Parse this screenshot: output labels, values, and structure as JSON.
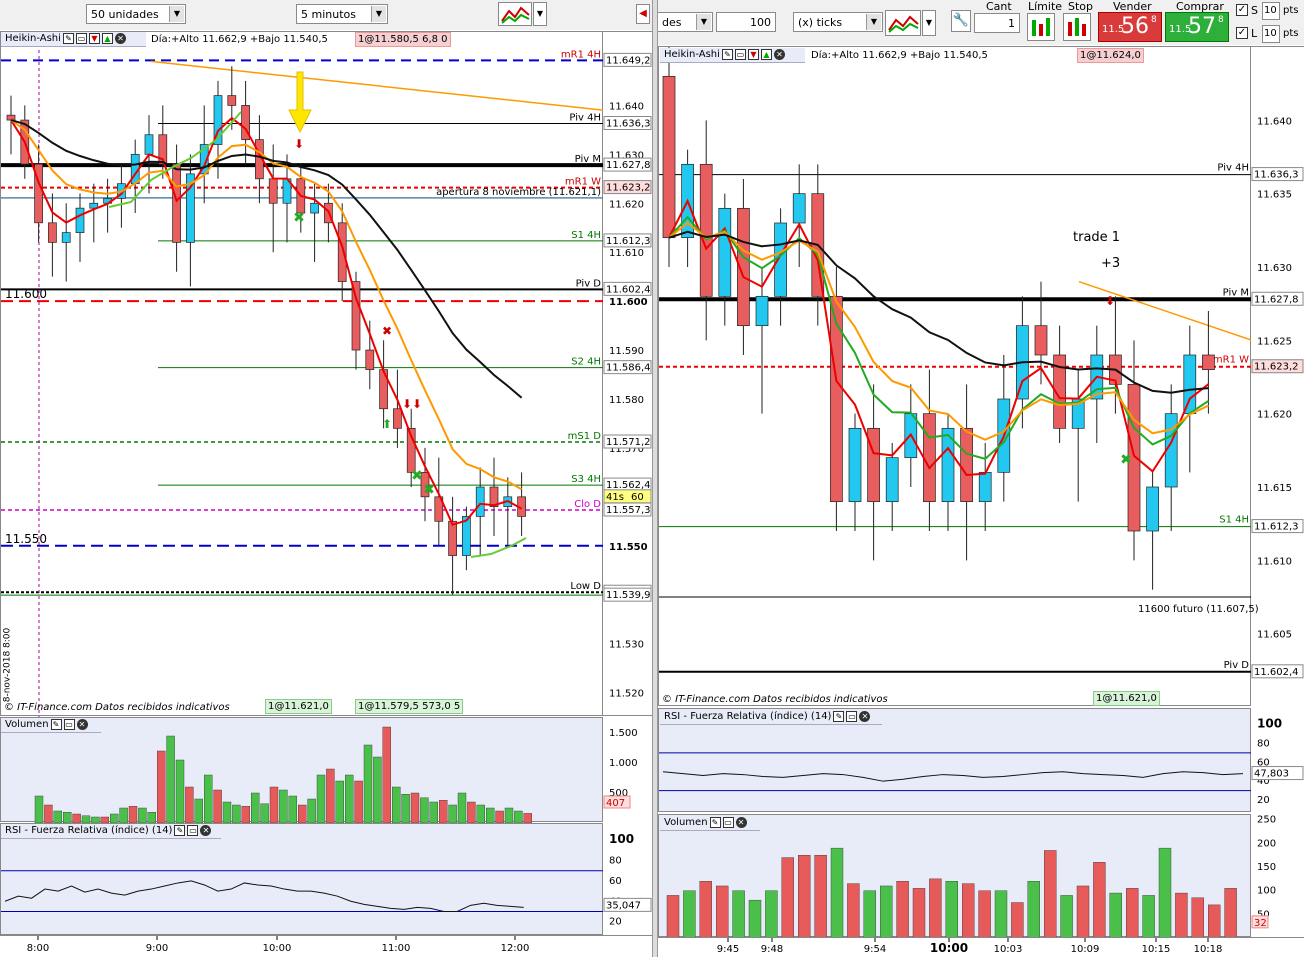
{
  "toolbar": {
    "left_qty": "50 unidades",
    "left_interval": "5 minutos",
    "right_unit": "des",
    "right_qty": "100",
    "right_ticks": "(x) ticks",
    "cant_label": "Cant",
    "cant_value": "1",
    "limite_label": "Límite",
    "stop_label": "Stop",
    "stop_value": "1@11.624,0",
    "vender_label": "Vender",
    "vender_small": "11.5",
    "vender_big": "56",
    "vender_sup": "8",
    "comprar_label": "Comprar",
    "comprar_small": "11.5",
    "comprar_big": "57",
    "comprar_sup": "8",
    "s_label": "S",
    "s_value": "10",
    "s_unit": "pts",
    "l_label": "L",
    "l_value": "10",
    "l_unit": "pts"
  },
  "left": {
    "panel_title": "Heikin-Ashi",
    "day_info": "Día:+Alto 11.662,9 +Bajo 11.540,5",
    "order_tag_top": "1@11.580,5",
    "order_tag_top_b": "6,8 0",
    "copyright": "© IT-Finance.com Datos recibidos indicativos",
    "order_tag_bottom1": "1@11.621,0",
    "order_tag_bottom2": "1@11.579,5",
    "order_tag_bottom2b": "573,0 5",
    "ticks": [
      "11.640",
      "11.630",
      "11.620",
      "11.610",
      "11.600",
      "11.590",
      "11.580",
      "11.570",
      "11.560",
      "11.550",
      "11.540",
      "11.530",
      "11.520"
    ],
    "left_labels": [
      "11.600",
      "11.550"
    ],
    "level_labels": [
      {
        "name": "mR1 4H",
        "value": "11.649,2"
      },
      {
        "name": "Piv 4H",
        "value": "11.636,3"
      },
      {
        "name": "Piv M",
        "value": "11.627,8"
      },
      {
        "name": "mR1 W",
        "value": "11.623,2"
      },
      {
        "name": "apertura 8 noviembre (11.621,1)",
        "value": ""
      },
      {
        "name": "S1 4H",
        "value": "11.612,3"
      },
      {
        "name": "Piv D",
        "value": "11.602,4"
      },
      {
        "name": "S2 4H",
        "value": "11.586,4"
      },
      {
        "name": "mS1 D",
        "value": "11.571,2"
      },
      {
        "name": "S3 4H",
        "value": "11.562,4"
      },
      {
        "name": "Clo D",
        "value": "11.557,3"
      },
      {
        "name": "Low D",
        "value": "11.540,5"
      },
      {
        "name": "",
        "value": "11.539,9"
      }
    ],
    "timer": "41s",
    "timer_price": "60",
    "date_vertical": "8-nov-2018 8:00",
    "vol_title": "Volumen",
    "vol_ticks": [
      "1.500",
      "1.000",
      "500"
    ],
    "vol_last": "407",
    "rsi_title": "RSI - Fuerza Relativa (índice) (14)",
    "rsi_ticks": [
      "100",
      "80",
      "60",
      "40",
      "20"
    ],
    "rsi_last": "35,047",
    "time_labels": [
      "8:00",
      "9:00",
      "10:00",
      "11:00",
      "12:00"
    ]
  },
  "right": {
    "panel_title": "Heikin-Ashi",
    "day_info": "Día:+Alto 11.662,9 +Bajo 11.540,5",
    "order_tag": "1@11.624,0",
    "annotation": "trade 1",
    "annotation2": "+3",
    "future_label": "11600 futuro (11.607,5)",
    "copyright": "© IT-Finance.com Datos recibidos indicativos",
    "order_tag_bottom": "1@11.621,0",
    "ticks": [
      "11.640",
      "11.635",
      "11.630",
      "11.625",
      "11.620",
      "11.615",
      "11.610",
      "11.605"
    ],
    "level_labels": [
      {
        "name": "Piv 4H",
        "value": "11.636,3"
      },
      {
        "name": "Piv M",
        "value": "11.627,8"
      },
      {
        "name": "mR1 W",
        "value": "11.623,2"
      },
      {
        "name": "S1 4H",
        "value": "11.612,3"
      },
      {
        "name": "Piv D",
        "value": "11.602,4"
      }
    ],
    "rsi_title": "RSI - Fuerza Relativa (índice) (14)",
    "rsi_ticks": [
      "100",
      "80",
      "60",
      "40",
      "20"
    ],
    "rsi_last": "47,803",
    "vol_title": "Volumen",
    "vol_ticks": [
      "250",
      "200",
      "150",
      "100",
      "50"
    ],
    "vol_last": "32",
    "time_labels": [
      "9:45",
      "9:48",
      "9:54",
      "10:00",
      "10:03",
      "10:09",
      "10:15",
      "10:18"
    ]
  },
  "chart_data": [
    {
      "type": "candlestick",
      "title": "Heikin-Ashi 5 minutos",
      "ylim": [
        11515,
        11655
      ],
      "candles": [
        [
          11638,
          11642,
          11630,
          11637
        ],
        [
          11637,
          11640,
          11625,
          11628
        ],
        [
          11628,
          11632,
          11612,
          11616
        ],
        [
          11616,
          11622,
          11605,
          11612
        ],
        [
          11612,
          11620,
          11604,
          11614
        ],
        [
          11614,
          11622,
          11608,
          11619
        ],
        [
          11619,
          11624,
          11612,
          11620
        ],
        [
          11620,
          11625,
          11614,
          11621
        ],
        [
          11621,
          11628,
          11615,
          11624
        ],
        [
          11624,
          11633,
          11618,
          11630
        ],
        [
          11630,
          11638,
          11622,
          11634
        ],
        [
          11634,
          11640,
          11625,
          11628
        ],
        [
          11628,
          11632,
          11606,
          11612
        ],
        [
          11612,
          11630,
          11603,
          11626
        ],
        [
          11626,
          11640,
          11620,
          11632
        ],
        [
          11632,
          11645,
          11625,
          11642
        ],
        [
          11642,
          11648,
          11635,
          11640
        ],
        [
          11640,
          11645,
          11628,
          11633
        ],
        [
          11633,
          11638,
          11620,
          11625
        ],
        [
          11625,
          11632,
          11610,
          11620
        ],
        [
          11620,
          11630,
          11612,
          11625
        ],
        [
          11625,
          11628,
          11614,
          11618
        ],
        [
          11618,
          11624,
          11608,
          11620
        ],
        [
          11620,
          11624,
          11612,
          11616
        ],
        [
          11616,
          11620,
          11600,
          11604
        ],
        [
          11604,
          11606,
          11586,
          11590
        ],
        [
          11590,
          11596,
          11582,
          11586
        ],
        [
          11586,
          11592,
          11574,
          11578
        ],
        [
          11578,
          11586,
          11570,
          11574
        ],
        [
          11574,
          11578,
          11562,
          11565
        ],
        [
          11565,
          11570,
          11555,
          11560
        ],
        [
          11560,
          11568,
          11550,
          11555
        ],
        [
          11555,
          11560,
          11540,
          11548
        ],
        [
          11548,
          11558,
          11545,
          11556
        ],
        [
          11556,
          11566,
          11548,
          11562
        ],
        [
          11562,
          11568,
          11552,
          11558
        ],
        [
          11558,
          11564,
          11550,
          11560
        ],
        [
          11560,
          11565,
          11552,
          11556
        ]
      ]
    },
    {
      "type": "candlestick",
      "title": "Heikin-Ashi 100 ticks",
      "ylim": [
        11600,
        11645
      ],
      "candles": [
        [
          11643,
          11646,
          11630,
          11632
        ],
        [
          11632,
          11638,
          11630,
          11637
        ],
        [
          11637,
          11640,
          11625,
          11628
        ],
        [
          11628,
          11635,
          11626,
          11634
        ],
        [
          11634,
          11636,
          11624,
          11626
        ],
        [
          11626,
          11630,
          11620,
          11628
        ],
        [
          11628,
          11634,
          11626,
          11633
        ],
        [
          11633,
          11637,
          11630,
          11635
        ],
        [
          11635,
          11637,
          11626,
          11628
        ],
        [
          11628,
          11630,
          11612,
          11614
        ],
        [
          11614,
          11620,
          11612,
          11619
        ],
        [
          11619,
          11622,
          11610,
          11614
        ],
        [
          11614,
          11618,
          11612,
          11617
        ],
        [
          11617,
          11622,
          11615,
          11620
        ],
        [
          11620,
          11623,
          11612,
          11614
        ],
        [
          11614,
          11620,
          11612,
          11619
        ],
        [
          11619,
          11622,
          11610,
          11614
        ],
        [
          11614,
          11618,
          11612,
          11616
        ],
        [
          11616,
          11624,
          11614,
          11621
        ],
        [
          11621,
          11628,
          11619,
          11626
        ],
        [
          11626,
          11629,
          11622,
          11624
        ],
        [
          11624,
          11626,
          11618,
          11619
        ],
        [
          11619,
          11623,
          11614,
          11621
        ],
        [
          11621,
          11626,
          11618,
          11624
        ],
        [
          11624,
          11628,
          11620,
          11622
        ],
        [
          11622,
          11625,
          11610,
          11612
        ],
        [
          11612,
          11616,
          11608,
          11615
        ],
        [
          11615,
          11622,
          11612,
          11620
        ],
        [
          11620,
          11626,
          11616,
          11624
        ],
        [
          11624,
          11627,
          11620,
          11623
        ]
      ]
    }
  ]
}
